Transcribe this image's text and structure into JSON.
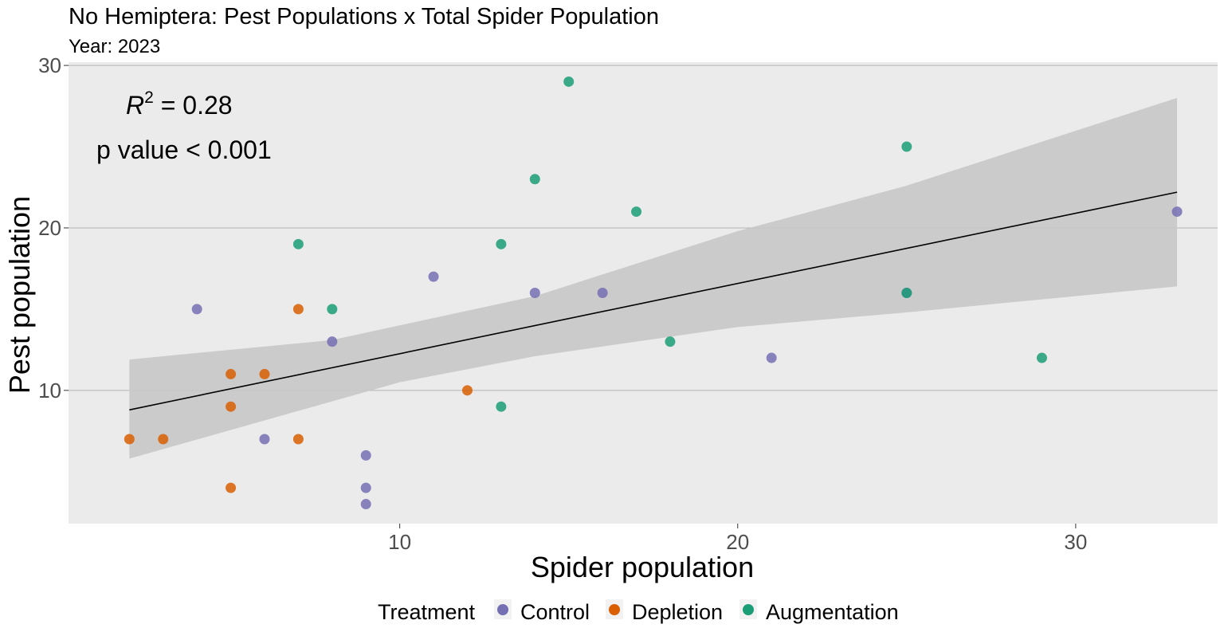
{
  "chart_data": {
    "type": "scatter",
    "title": "No Hemiptera: Pest Populations x Total Spider Population",
    "subtitle": "Year: 2023",
    "xlabel": "Spider population",
    "ylabel": "Pest population",
    "xlim": [
      0.2,
      34.2
    ],
    "ylim": [
      1.8,
      30.2
    ],
    "x_ticks": [
      10,
      20,
      30
    ],
    "y_ticks": [
      10,
      20,
      30
    ],
    "grid": true,
    "legend": {
      "title": "Treatment",
      "position": "bottom"
    },
    "annotations": {
      "r2_label": "R",
      "r2_sup": "2",
      "r2_value": " = 0.28",
      "p_value": "p value < 0.001"
    },
    "colors": {
      "Control": "#7570b3",
      "Depletion": "#d95f02",
      "Augmentation": "#1b9e77",
      "panel_bg": "#ebebeb",
      "grid": "#b3b3b3",
      "ribbon": "#c8c8c8",
      "fit_line": "#000000"
    },
    "series": [
      {
        "name": "Control",
        "points": [
          [
            4,
            15
          ],
          [
            6,
            7
          ],
          [
            8,
            13
          ],
          [
            9,
            6
          ],
          [
            9,
            4
          ],
          [
            9,
            3
          ],
          [
            11,
            17
          ],
          [
            14,
            16
          ],
          [
            16,
            16
          ],
          [
            21,
            12
          ],
          [
            25,
            16
          ],
          [
            33,
            21
          ]
        ]
      },
      {
        "name": "Depletion",
        "points": [
          [
            2,
            7
          ],
          [
            3,
            7
          ],
          [
            5,
            11
          ],
          [
            5,
            9
          ],
          [
            5,
            4
          ],
          [
            6,
            11
          ],
          [
            7,
            15
          ],
          [
            7,
            7
          ],
          [
            12,
            10
          ]
        ]
      },
      {
        "name": "Augmentation",
        "points": [
          [
            7,
            19
          ],
          [
            8,
            15
          ],
          [
            13,
            19
          ],
          [
            13,
            9
          ],
          [
            14,
            23
          ],
          [
            15,
            29
          ],
          [
            17,
            21
          ],
          [
            18,
            13
          ],
          [
            25,
            25
          ],
          [
            25,
            16
          ],
          [
            29,
            12
          ]
        ]
      }
    ],
    "fit": {
      "x_range": [
        2,
        33
      ],
      "line": [
        [
          2,
          8.8
        ],
        [
          33,
          22.2
        ]
      ],
      "ribbon_lower": [
        [
          2,
          5.8
        ],
        [
          10,
          10.5
        ],
        [
          14,
          12.1
        ],
        [
          20,
          13.9
        ],
        [
          25,
          14.8
        ],
        [
          33,
          16.4
        ]
      ],
      "ribbon_upper": [
        [
          2,
          11.9
        ],
        [
          8,
          13.1
        ],
        [
          14,
          15.8
        ],
        [
          20,
          19.8
        ],
        [
          25,
          22.6
        ],
        [
          33,
          28.0
        ]
      ]
    }
  }
}
